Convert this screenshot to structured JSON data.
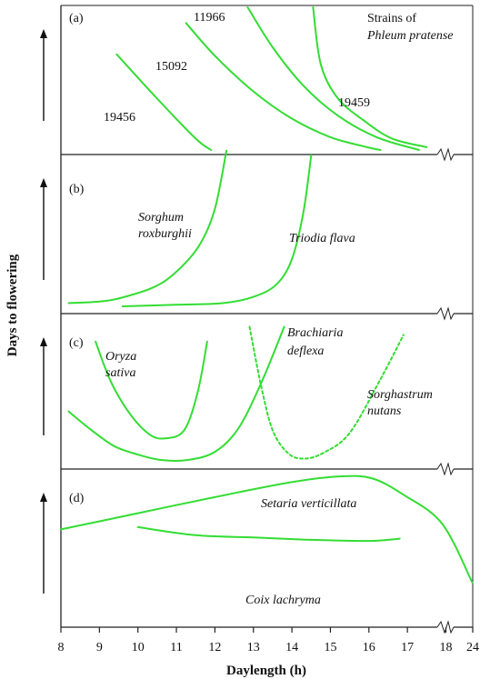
{
  "chart_data": {
    "type": "line",
    "ylabel": "Days to flowering",
    "xlabel": "Daylength (h)",
    "x_ticks": [
      "8",
      "9",
      "10",
      "11",
      "12",
      "13",
      "14",
      "15",
      "16",
      "17",
      "18",
      "24"
    ],
    "xlim": [
      8,
      24
    ],
    "axis_break": [
      18,
      24
    ],
    "y_ticks_shown": false,
    "colors": {
      "curve": "#33dd33",
      "axis": "#222222"
    },
    "panels": [
      {
        "label": "(a)",
        "annotations": [
          {
            "text": "Strains of",
            "italic": false
          },
          {
            "text": "Phleum pratense",
            "italic": true
          }
        ],
        "series": [
          {
            "name": "19456",
            "style": "solid",
            "points": [
              [
                9.45,
                0.67
              ],
              [
                10.5,
                0.36
              ],
              [
                11.5,
                0.08
              ],
              [
                11.9,
                0.0
              ]
            ]
          },
          {
            "name": "15092",
            "style": "solid",
            "points": [
              [
                11.25,
                0.89
              ],
              [
                12.0,
                0.66
              ],
              [
                13.0,
                0.41
              ],
              [
                14.0,
                0.22
              ],
              [
                15.0,
                0.09
              ],
              [
                15.95,
                0.02
              ],
              [
                16.3,
                0.0
              ]
            ]
          },
          {
            "name": "11966",
            "style": "solid",
            "points": [
              [
                12.85,
                1.0
              ],
              [
                13.5,
                0.72
              ],
              [
                14.3,
                0.45
              ],
              [
                15.2,
                0.24
              ],
              [
                16.2,
                0.09
              ],
              [
                17.3,
                0.0
              ]
            ]
          },
          {
            "name": "19459",
            "style": "solid",
            "points": [
              [
                14.55,
                1.0
              ],
              [
                14.75,
                0.6
              ],
              [
                15.2,
                0.36
              ],
              [
                15.9,
                0.2
              ],
              [
                16.6,
                0.08
              ],
              [
                17.5,
                0.02
              ]
            ]
          }
        ]
      },
      {
        "label": "(b)",
        "annotations": [],
        "series": [
          {
            "name": "Sorghum roxburghii",
            "style": "solid",
            "points": [
              [
                8.2,
                0.02
              ],
              [
                9.0,
                0.03
              ],
              [
                9.5,
                0.05
              ],
              [
                10.4,
                0.12
              ],
              [
                11.0,
                0.22
              ],
              [
                11.6,
                0.39
              ],
              [
                12.0,
                0.62
              ],
              [
                12.3,
                0.99
              ]
            ]
          },
          {
            "name": "Triodia flava",
            "style": "solid",
            "points": [
              [
                9.6,
                0.0
              ],
              [
                11.0,
                0.01
              ],
              [
                12.2,
                0.02
              ],
              [
                13.0,
                0.06
              ],
              [
                13.6,
                0.14
              ],
              [
                14.0,
                0.3
              ],
              [
                14.3,
                0.6
              ],
              [
                14.5,
                0.96
              ]
            ]
          }
        ]
      },
      {
        "label": "(c)",
        "annotations": [],
        "series": [
          {
            "name": "Oryza sativa",
            "style": "solid",
            "points": [
              [
                8.9,
                0.88
              ],
              [
                9.3,
                0.58
              ],
              [
                9.8,
                0.34
              ],
              [
                10.3,
                0.19
              ],
              [
                10.7,
                0.16
              ],
              [
                11.2,
                0.22
              ],
              [
                11.55,
                0.5
              ],
              [
                11.8,
                0.88
              ]
            ]
          },
          {
            "name": "Brachiaria deflexa",
            "style": "solid",
            "points": [
              [
                8.2,
                0.36
              ],
              [
                8.8,
                0.22
              ],
              [
                9.4,
                0.1
              ],
              [
                10.0,
                0.04
              ],
              [
                10.6,
                0.0
              ],
              [
                11.3,
                0.0
              ],
              [
                12.0,
                0.06
              ],
              [
                12.6,
                0.23
              ],
              [
                13.2,
                0.57
              ],
              [
                13.8,
                0.99
              ]
            ]
          },
          {
            "name": "Sorghastrum nutans",
            "style": "dotted",
            "points": [
              [
                12.9,
                0.99
              ],
              [
                13.2,
                0.55
              ],
              [
                13.5,
                0.22
              ],
              [
                13.9,
                0.05
              ],
              [
                14.3,
                0.01
              ],
              [
                14.8,
                0.05
              ],
              [
                15.5,
                0.2
              ],
              [
                16.3,
                0.6
              ],
              [
                16.9,
                0.93
              ]
            ]
          }
        ]
      },
      {
        "label": "(d)",
        "annotations": [],
        "series": [
          {
            "name": "Setaria verticillata",
            "style": "solid",
            "points": [
              [
                8.0,
                0.54
              ],
              [
                10.0,
                0.68
              ],
              [
                12.0,
                0.82
              ],
              [
                14.0,
                0.95
              ],
              [
                15.3,
                1.0
              ],
              [
                16.1,
                0.98
              ],
              [
                16.9,
                0.84
              ],
              [
                17.9,
                0.59
              ],
              [
                23.9,
                0.08
              ]
            ]
          },
          {
            "name": "Coix lachryma",
            "style": "solid",
            "points": [
              [
                10.0,
                0.56
              ],
              [
                11.5,
                0.49
              ],
              [
                13.0,
                0.47
              ],
              [
                14.5,
                0.45
              ],
              [
                16.0,
                0.44
              ],
              [
                16.8,
                0.46
              ]
            ]
          }
        ]
      }
    ]
  }
}
